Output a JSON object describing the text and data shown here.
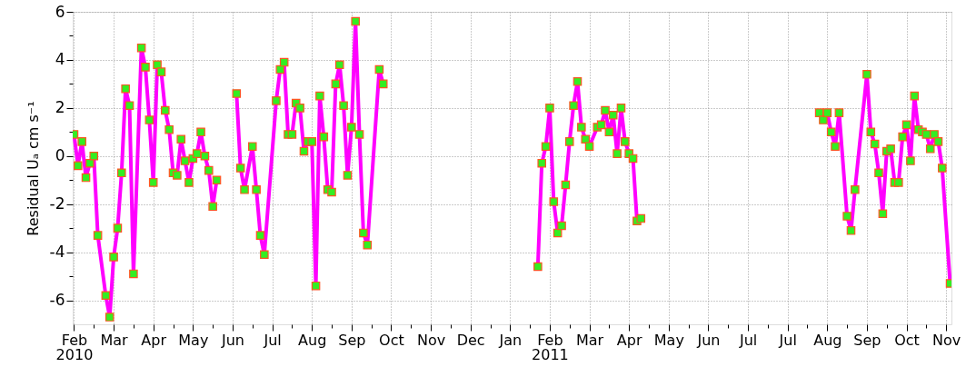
{
  "chart_data": {
    "type": "line",
    "ylabel": "Residual Uₐ cm s⁻¹",
    "xlim": [
      "2010-02-05",
      "2011-12-02"
    ],
    "ylim": [
      -7,
      6
    ],
    "yticks": [
      -6,
      -4,
      -2,
      0,
      2,
      4,
      6,
      {
        "value": -5,
        "label": null
      },
      {
        "value": -3,
        "label": null
      },
      {
        "value": -1,
        "label": null
      },
      {
        "value": 1,
        "label": null
      },
      {
        "value": 3,
        "label": null
      },
      {
        "value": 5,
        "label": null
      }
    ],
    "xticks": [
      {
        "value": "2010-02-06",
        "label": "Feb\n2010"
      },
      {
        "value": "2010-03-08",
        "label": "Mar"
      },
      {
        "value": "2010-04-07",
        "label": "Apr"
      },
      {
        "value": "2010-05-07",
        "label": "May"
      },
      {
        "value": "2010-06-06",
        "label": "Jun"
      },
      {
        "value": "2010-07-06",
        "label": "Jul"
      },
      {
        "value": "2010-08-05",
        "label": "Aug"
      },
      {
        "value": "2010-09-04",
        "label": "Sep"
      },
      {
        "value": "2010-10-04",
        "label": "Oct"
      },
      {
        "value": "2010-11-03",
        "label": "Nov"
      },
      {
        "value": "2010-12-03",
        "label": "Dec"
      },
      {
        "value": "2011-01-02",
        "label": "Jan"
      },
      {
        "value": "2011-02-01",
        "label": "Feb\n2011"
      },
      {
        "value": "2011-03-03",
        "label": "Mar"
      },
      {
        "value": "2011-04-02",
        "label": "Apr"
      },
      {
        "value": "2011-05-02",
        "label": "May"
      },
      {
        "value": "2011-06-01",
        "label": "Jun"
      },
      {
        "value": "2011-07-01",
        "label": "Jul"
      },
      {
        "value": "2011-07-31",
        "label": "Jul"
      },
      {
        "value": "2011-08-30",
        "label": "Aug"
      },
      {
        "value": "2011-09-29",
        "label": "Sep"
      },
      {
        "value": "2011-10-29",
        "label": "Oct"
      },
      {
        "value": "2011-11-28",
        "label": "Nov"
      },
      {
        "value": "2010-02-21",
        "label": null
      },
      {
        "value": "2010-03-23",
        "label": null
      },
      {
        "value": "2010-04-22",
        "label": null
      },
      {
        "value": "2010-05-22",
        "label": null
      },
      {
        "value": "2010-06-21",
        "label": null
      },
      {
        "value": "2010-07-21",
        "label": null
      },
      {
        "value": "2010-08-20",
        "label": null
      },
      {
        "value": "2010-09-19",
        "label": null
      },
      {
        "value": "2010-10-19",
        "label": null
      },
      {
        "value": "2010-11-18",
        "label": null
      },
      {
        "value": "2010-12-18",
        "label": null
      },
      {
        "value": "2011-01-17",
        "label": null
      },
      {
        "value": "2011-02-16",
        "label": null
      },
      {
        "value": "2011-03-18",
        "label": null
      },
      {
        "value": "2011-04-17",
        "label": null
      },
      {
        "value": "2011-05-17",
        "label": null
      },
      {
        "value": "2011-06-16",
        "label": null
      },
      {
        "value": "2011-07-16",
        "label": null
      },
      {
        "value": "2011-08-15",
        "label": null
      },
      {
        "value": "2011-09-14",
        "label": null
      },
      {
        "value": "2011-10-14",
        "label": null
      },
      {
        "value": "2011-11-13",
        "label": null
      }
    ],
    "grid": true,
    "marker": "square",
    "line_style": "solid",
    "series": [
      {
        "color": "#ff00ff",
        "x": [
          "2010-02-06",
          "2010-02-09",
          "2010-02-12",
          "2010-02-15",
          "2010-02-18",
          "2010-02-21",
          "2010-02-24",
          "2010-03-02",
          "2010-03-05",
          "2010-03-08",
          "2010-03-11",
          "2010-03-14",
          "2010-03-17",
          "2010-03-20",
          "2010-03-23",
          "2010-03-29",
          "2010-04-01",
          "2010-04-04",
          "2010-04-07",
          "2010-04-10",
          "2010-04-13",
          "2010-04-16",
          "2010-04-19",
          "2010-04-22",
          "2010-04-25",
          "2010-04-28",
          "2010-05-01",
          "2010-05-04",
          "2010-05-07",
          "2010-05-10",
          "2010-05-13",
          "2010-05-16",
          "2010-05-19",
          "2010-05-22",
          "2010-05-25",
          "2010-06-01",
          "2010-06-09",
          "2010-06-12",
          "2010-06-15",
          "2010-06-21",
          "2010-06-24",
          "2010-06-27",
          "2010-06-30",
          "2010-07-09",
          "2010-07-12",
          "2010-07-15",
          "2010-07-18",
          "2010-07-21",
          "2010-07-24",
          "2010-07-27",
          "2010-07-30",
          "2010-08-02",
          "2010-08-05",
          "2010-08-08",
          "2010-08-11",
          "2010-08-14",
          "2010-08-17",
          "2010-08-20",
          "2010-08-23",
          "2010-08-26",
          "2010-08-29",
          "2010-09-01",
          "2010-09-04",
          "2010-09-07",
          "2010-09-10",
          "2010-09-13",
          "2010-09-16",
          "2010-09-25",
          "2010-09-28",
          "2010-11-15",
          "2011-01-23",
          "2011-01-26",
          "2011-01-29",
          "2011-02-01",
          "2011-02-04",
          "2011-02-07",
          "2011-02-10",
          "2011-02-13",
          "2011-02-16",
          "2011-02-19",
          "2011-02-22",
          "2011-02-25",
          "2011-02-28",
          "2011-03-03",
          "2011-03-09",
          "2011-03-12",
          "2011-03-15",
          "2011-03-18",
          "2011-03-21",
          "2011-03-24",
          "2011-03-27",
          "2011-03-30",
          "2011-04-02",
          "2011-04-05",
          "2011-04-08",
          "2011-04-11",
          "2011-06-15",
          "2011-08-24",
          "2011-08-27",
          "2011-08-30",
          "2011-09-02",
          "2011-09-05",
          "2011-09-08",
          "2011-09-14",
          "2011-09-17",
          "2011-09-20",
          "2011-09-29",
          "2011-10-02",
          "2011-10-05",
          "2011-10-08",
          "2011-10-11",
          "2011-10-14",
          "2011-10-17",
          "2011-10-20",
          "2011-10-23",
          "2011-10-26",
          "2011-10-29",
          "2011-11-01",
          "2011-11-04",
          "2011-11-07",
          "2011-11-10",
          "2011-11-13",
          "2011-11-16",
          "2011-11-19",
          "2011-11-22",
          "2011-11-25",
          "2011-12-01"
        ],
        "values": [
          0.9,
          -0.4,
          0.6,
          -0.9,
          -0.3,
          0.0,
          -3.3,
          -5.8,
          -6.7,
          -4.2,
          -3.0,
          -0.7,
          2.8,
          2.1,
          -4.9,
          4.5,
          3.7,
          1.5,
          -1.1,
          3.8,
          3.5,
          1.9,
          1.1,
          -0.7,
          -0.8,
          0.7,
          -0.2,
          -1.1,
          -0.1,
          0.1,
          1.0,
          0.0,
          -0.6,
          -2.1,
          -1.0,
          null,
          2.6,
          -0.5,
          -1.4,
          0.4,
          -1.4,
          -3.3,
          -4.1,
          2.3,
          3.6,
          3.9,
          0.9,
          0.9,
          2.2,
          2.0,
          0.2,
          0.6,
          0.6,
          -5.4,
          2.5,
          0.8,
          -1.4,
          -1.5,
          3.0,
          3.8,
          2.1,
          -0.8,
          1.2,
          5.6,
          0.9,
          -3.2,
          -3.7,
          3.6,
          3.0,
          null,
          -4.6,
          -0.3,
          0.4,
          2.0,
          -1.9,
          -3.2,
          -2.9,
          -1.2,
          0.6,
          2.1,
          3.1,
          1.2,
          0.7,
          0.4,
          1.2,
          1.3,
          1.9,
          1.0,
          1.7,
          0.1,
          2.0,
          0.6,
          0.1,
          -0.1,
          -2.7,
          -2.6,
          null,
          1.8,
          1.5,
          1.8,
          1.0,
          0.4,
          1.8,
          -2.5,
          -3.1,
          -1.4,
          3.4,
          1.0,
          0.5,
          -0.7,
          -2.4,
          0.2,
          0.3,
          -1.1,
          -1.1,
          0.8,
          1.3,
          -0.2,
          2.5,
          1.1,
          1.0,
          0.9,
          0.3,
          0.9,
          0.6,
          -0.5,
          -5.3
        ]
      }
    ]
  }
}
